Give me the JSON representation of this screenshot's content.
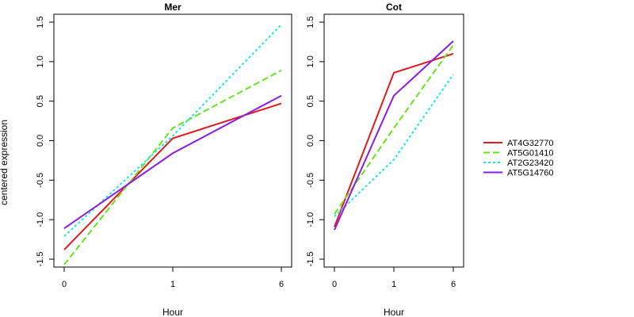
{
  "figure": {
    "ylabel": "centered expression",
    "xlabel": "Hour"
  },
  "legend": {
    "placement": "right",
    "entries": [
      {
        "name": "AT4G32770",
        "color": "#e31a1c",
        "dash": "solid"
      },
      {
        "name": "AT5G01410",
        "color": "#66e61a",
        "dash": "dashed"
      },
      {
        "name": "AT2G23420",
        "color": "#1ae6e6",
        "dash": "dotted"
      },
      {
        "name": "AT5G14760",
        "color": "#8b1ae6",
        "dash": "solid"
      }
    ]
  },
  "chart_data": [
    {
      "type": "line",
      "title": "Mer",
      "xlabel": "Hour",
      "ylabel": "centered expression",
      "x": [
        "0",
        "1",
        "6"
      ],
      "ylim": [
        -1.6,
        1.6
      ],
      "yticks": [
        "-1.5",
        "-1.0",
        "-0.5",
        "0.0",
        "0.5",
        "1.0",
        "1.5"
      ],
      "grid": false,
      "series": [
        {
          "name": "AT4G32770",
          "values": [
            -1.38,
            0.03,
            0.47
          ]
        },
        {
          "name": "AT5G01410",
          "values": [
            -1.57,
            0.16,
            0.89
          ]
        },
        {
          "name": "AT2G23420",
          "values": [
            -1.21,
            0.06,
            1.47
          ]
        },
        {
          "name": "AT5G14760",
          "values": [
            -1.11,
            -0.16,
            0.57
          ]
        }
      ]
    },
    {
      "type": "line",
      "title": "Cot",
      "xlabel": "Hour",
      "ylabel": "",
      "x": [
        "0",
        "1",
        "6"
      ],
      "ylim": [
        -1.6,
        1.6
      ],
      "yticks": [
        "-1.5",
        "-1.0",
        "-0.5",
        "0.0",
        "0.5",
        "1.0",
        "1.5"
      ],
      "grid": false,
      "series": [
        {
          "name": "AT4G32770",
          "values": [
            -1.09,
            0.86,
            1.1
          ]
        },
        {
          "name": "AT5G01410",
          "values": [
            -0.93,
            0.16,
            1.21
          ]
        },
        {
          "name": "AT2G23420",
          "values": [
            -0.96,
            -0.24,
            0.84
          ]
        },
        {
          "name": "AT5G14760",
          "values": [
            -1.13,
            0.57,
            1.26
          ]
        }
      ]
    }
  ]
}
